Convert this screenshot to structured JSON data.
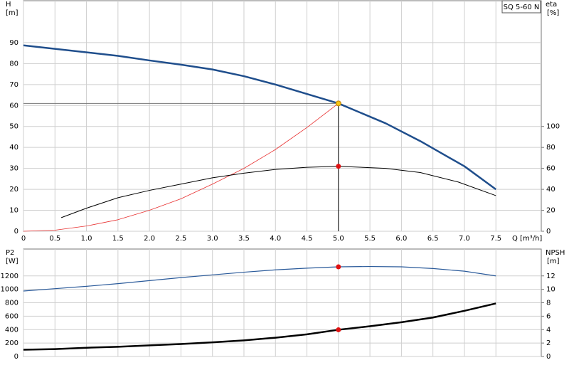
{
  "chart_data": [
    {
      "type": "line",
      "title": "SQ 5-60 N",
      "ylabel": "H",
      "yunit": "[m]",
      "y2label": "eta",
      "y2unit": "[%]",
      "xlabel": "Q [m³/h]",
      "xlim": [
        0,
        8.22
      ],
      "ylim": [
        0,
        110
      ],
      "y2lim": [
        0,
        220
      ],
      "xticks": [
        0,
        0.5,
        {
          "value": 1,
          "label": "1.0"
        },
        1.5,
        {
          "value": 2,
          "label": "2.0"
        },
        2.5,
        {
          "value": 3,
          "label": "3.0"
        },
        3.5,
        {
          "value": 4,
          "label": "4.0"
        },
        4.5,
        {
          "value": 5,
          "label": "5.0"
        },
        5.5,
        {
          "value": 6,
          "label": "6.0"
        },
        6.5,
        {
          "value": 7,
          "label": "7.0"
        },
        7.5
      ],
      "yticks": [
        0,
        10,
        20,
        30,
        40,
        50,
        60,
        70,
        80,
        90
      ],
      "y2ticks": [
        0,
        20,
        40,
        60,
        80,
        100
      ],
      "grid": true,
      "series": [
        {
          "color": "#1f4e8c",
          "width": 2.5,
          "x": [
            0,
            1.5,
            2,
            2.5,
            3,
            3.5,
            4,
            4.5,
            5,
            5.75,
            6.3,
            7,
            7.5
          ],
          "values": [
            88.7,
            83.7,
            81.5,
            79.5,
            77.2,
            74,
            70,
            65.5,
            61,
            51.5,
            43,
            31,
            20
          ]
        },
        {
          "color": "#e83030",
          "width": 0.8,
          "x": [
            0,
            0.5,
            1,
            1.5,
            2,
            2.5,
            3,
            3.5,
            4,
            4.5,
            5
          ],
          "values": [
            0,
            0.5,
            2.5,
            5.5,
            10,
            15.5,
            22.5,
            30,
            39,
            49.5,
            61
          ]
        },
        {
          "color": "#000000",
          "width": 1,
          "axis": "y2",
          "x": [
            0.6,
            1,
            1.5,
            2,
            2.5,
            3,
            3.5,
            4,
            4.5,
            5,
            5.75,
            6.3,
            6.9,
            7.5
          ],
          "values": [
            13,
            22,
            32,
            39,
            45,
            51,
            55.4,
            59,
            61,
            62,
            60,
            56,
            47,
            34
          ]
        },
        {
          "color": "#f5c518",
          "marker": true,
          "guides": true,
          "x": [
            5
          ],
          "values": [
            61
          ]
        },
        {
          "color": "#e01010",
          "marker": true,
          "axis": "y2",
          "x": [
            5
          ],
          "values": [
            62
          ]
        }
      ]
    },
    {
      "type": "line",
      "ylabel": "P2",
      "yunit": "[W]",
      "y2label": "NPSH",
      "y2unit": "[m]",
      "xlim": [
        0,
        8.22
      ],
      "ylim": [
        0,
        1600
      ],
      "y2lim": [
        0,
        16
      ],
      "xticks": [
        0,
        0.5,
        1,
        1.5,
        2,
        2.5,
        3,
        3.5,
        4,
        4.5,
        5,
        5.5,
        6,
        6.5,
        7,
        7.5
      ],
      "show_xtick_labels": false,
      "yticks": [
        0,
        200,
        400,
        600,
        800,
        1000,
        1200
      ],
      "y2ticks": [
        0,
        2,
        4,
        6,
        8,
        10,
        12
      ],
      "grid": true,
      "series": [
        {
          "color": "#2a5a9a",
          "width": 1.2,
          "x": [
            0,
            0.5,
            1,
            1.5,
            2,
            2.5,
            3,
            3.5,
            4,
            4.5,
            5,
            5.5,
            6,
            6.5,
            7,
            7.5
          ],
          "values": [
            975,
            1010,
            1045,
            1085,
            1130,
            1175,
            1215,
            1255,
            1290,
            1315,
            1335,
            1340,
            1335,
            1310,
            1270,
            1200
          ]
        },
        {
          "color": "#000000",
          "width": 2.5,
          "axis": "y2",
          "x": [
            0,
            0.5,
            1,
            1.5,
            2,
            2.5,
            3,
            3.5,
            4,
            4.5,
            5,
            5.5,
            6,
            6.5,
            7,
            7.5
          ],
          "values": [
            1.0,
            1.1,
            1.3,
            1.45,
            1.65,
            1.85,
            2.1,
            2.4,
            2.8,
            3.3,
            3.98,
            4.5,
            5.1,
            5.8,
            6.8,
            7.9
          ]
        },
        {
          "color": "#e01010",
          "marker": true,
          "x": [
            5
          ],
          "values": [
            1335
          ]
        },
        {
          "color": "#e01010",
          "marker": true,
          "axis": "y2",
          "x": [
            5
          ],
          "values": [
            3.98
          ]
        }
      ]
    }
  ]
}
